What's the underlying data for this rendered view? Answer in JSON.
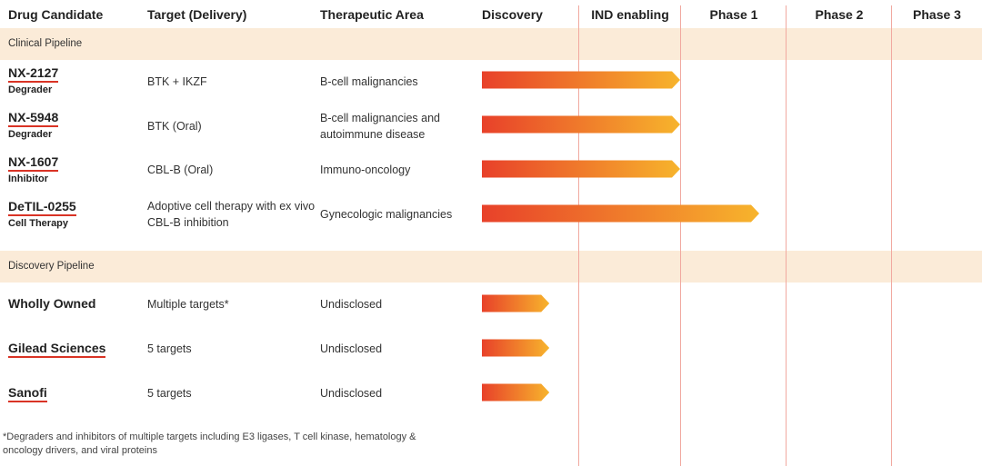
{
  "columns": {
    "drug_candidate": "Drug Candidate",
    "target": "Target (Delivery)",
    "area": "Therapeutic Area",
    "stages": [
      "Discovery",
      "IND enabling",
      "Phase 1",
      "Phase 2",
      "Phase 3"
    ]
  },
  "sections": [
    {
      "label": "Clinical Pipeline",
      "rows": [
        {
          "name": "NX-2127",
          "subtitle": "Degrader",
          "target": "BTK + IKZF",
          "area": "B-cell malignancies"
        },
        {
          "name": "NX-5948",
          "subtitle": "Degrader",
          "target": "BTK (Oral)",
          "area": "B-cell malignancies and autoimmune disease"
        },
        {
          "name": "NX-1607",
          "subtitle": "Inhibitor",
          "target": "CBL-B (Oral)",
          "area": "Immuno-oncology"
        },
        {
          "name": "DeTIL-0255",
          "subtitle": "Cell Therapy",
          "target": "Adoptive cell therapy with ex vivo CBL-B inhibition",
          "area": "Gynecologic malignancies"
        }
      ]
    },
    {
      "label": "Discovery Pipeline",
      "rows": [
        {
          "name": "Wholly Owned",
          "subtitle": "",
          "target": "Multiple targets*",
          "area": "Undisclosed"
        },
        {
          "name": "Gilead Sciences",
          "subtitle": "",
          "target": "5 targets",
          "area": "Undisclosed"
        },
        {
          "name": "Sanofi",
          "subtitle": "",
          "target": "5 targets",
          "area": "Undisclosed"
        }
      ]
    }
  ],
  "footnote": {
    "asterisk": "*",
    "text": "Degraders and inhibitors of multiple targets including E3 ligases, T cell kinase, hematology & oncology drivers, and viral proteins"
  },
  "chart_data": {
    "type": "bar",
    "orientation": "horizontal",
    "categories": [
      "NX-2127",
      "NX-5948",
      "NX-1607",
      "DeTIL-0255",
      "Wholly Owned",
      "Gilead Sciences",
      "Sanofi"
    ],
    "stages": [
      "Discovery",
      "IND enabling",
      "Phase 1",
      "Phase 2",
      "Phase 3"
    ],
    "values": [
      2.0,
      2.0,
      2.0,
      2.75,
      0.7,
      0.7,
      0.7
    ],
    "value_unit": "stages completed (progress through pipeline stages)",
    "xlim": [
      0,
      5
    ],
    "bar_gradient": [
      "#e8412a",
      "#f7b42c"
    ]
  }
}
